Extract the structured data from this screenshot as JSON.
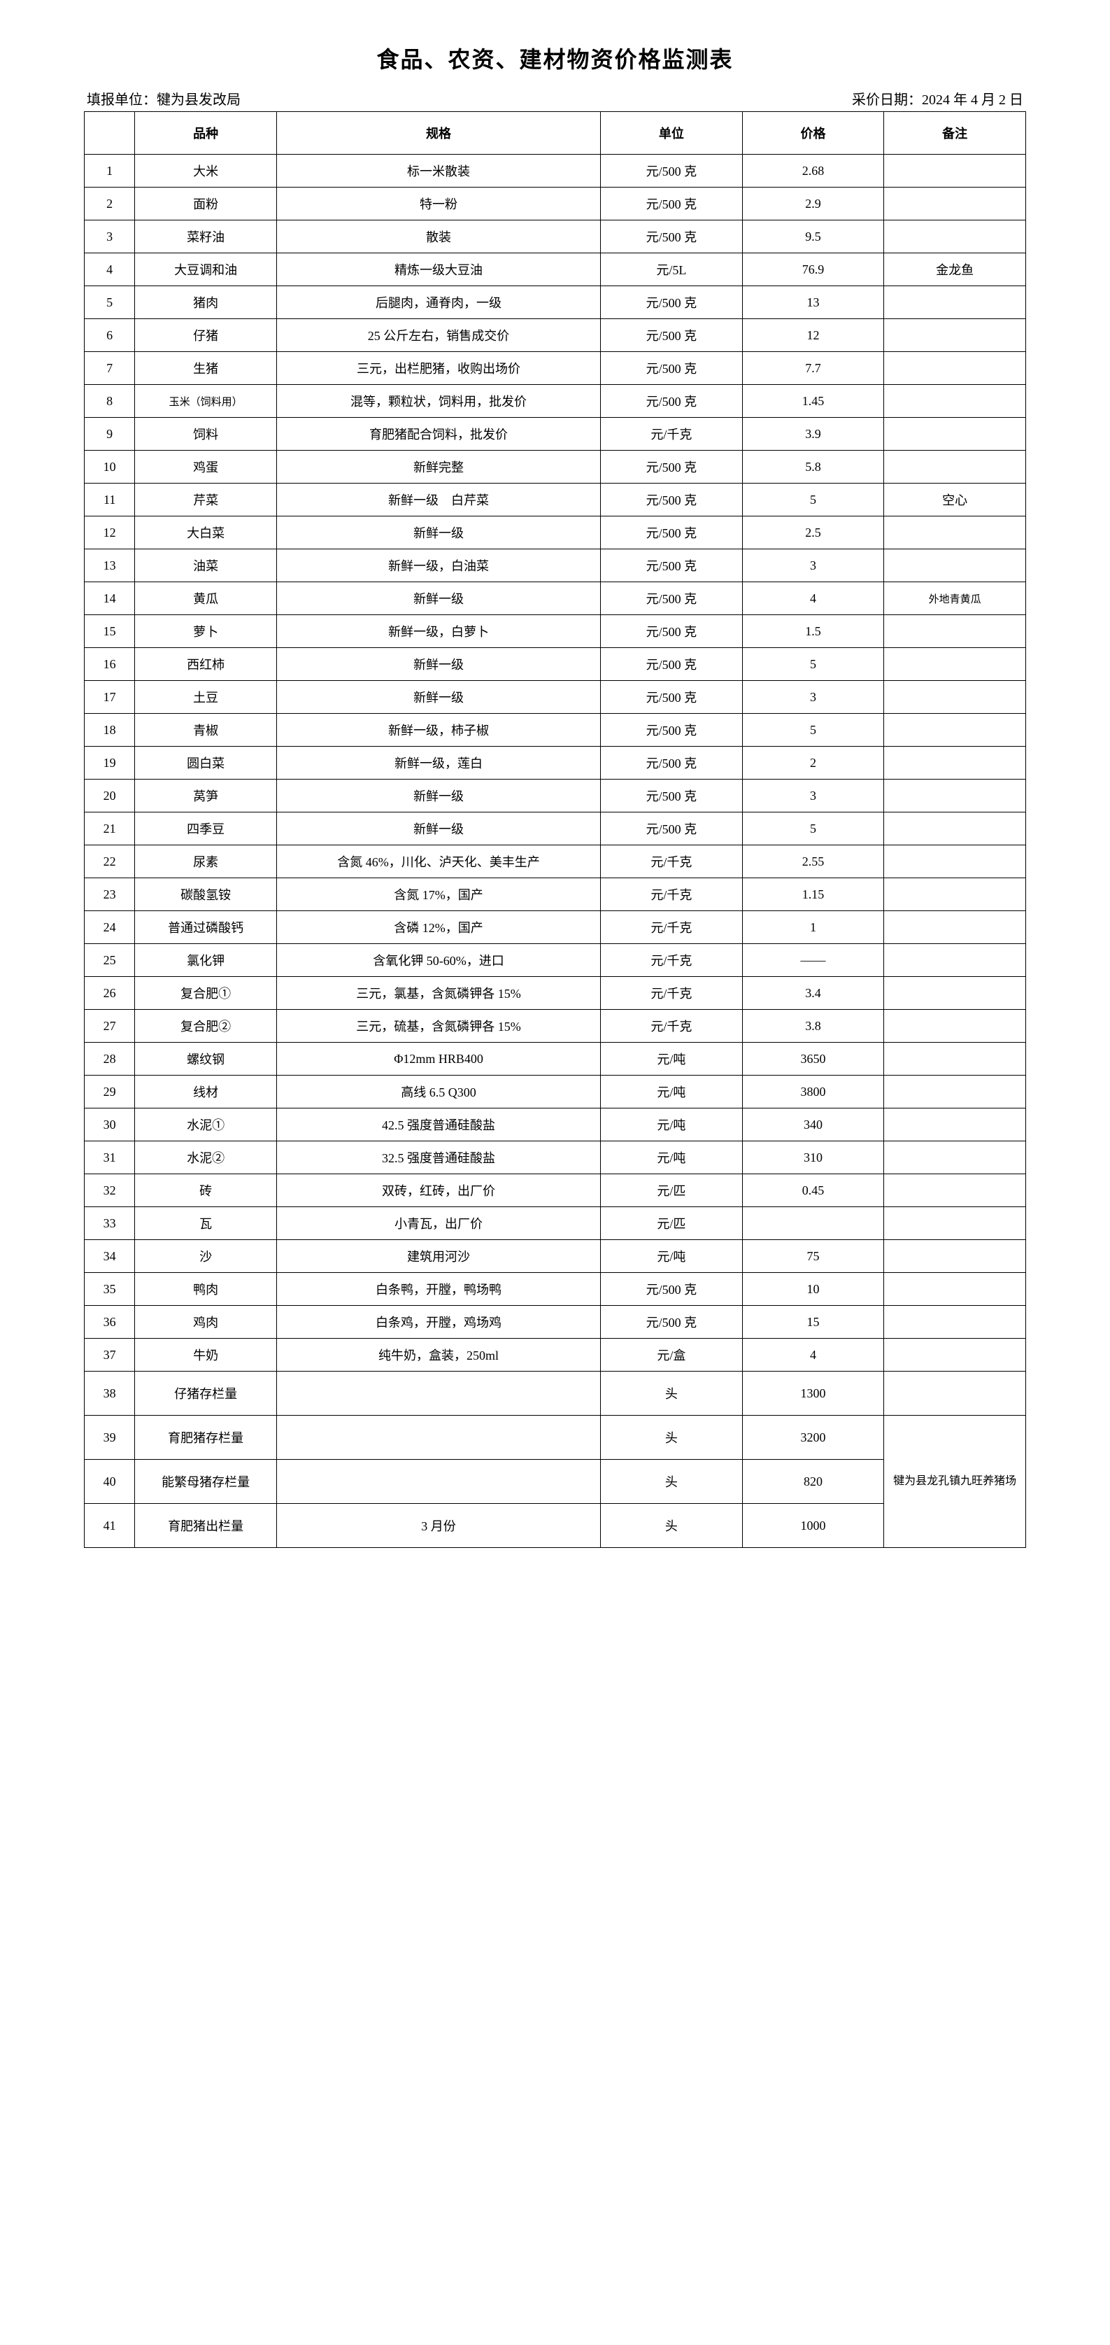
{
  "title": "食品、农资、建材物资价格监测表",
  "meta": {
    "reporter_label": "填报单位：犍为县发改局",
    "date_label": "采价日期：2024 年 4 月 2 日"
  },
  "headers": {
    "idx": "",
    "name": "品种",
    "spec": "规格",
    "unit": "单位",
    "price": "价格",
    "note": "备注"
  },
  "rows": [
    {
      "idx": "1",
      "name": "大米",
      "spec": "标一米散装",
      "unit": "元/500 克",
      "price": "2.68",
      "note": ""
    },
    {
      "idx": "2",
      "name": "面粉",
      "spec": "特一粉",
      "unit": "元/500 克",
      "price": "2.9",
      "note": ""
    },
    {
      "idx": "3",
      "name": "菜籽油",
      "spec": "散装",
      "unit": "元/500 克",
      "price": "9.5",
      "note": ""
    },
    {
      "idx": "4",
      "name": "大豆调和油",
      "spec": "精炼一级大豆油",
      "unit": "元/5L",
      "price": "76.9",
      "note": "金龙鱼"
    },
    {
      "idx": "5",
      "name": "猪肉",
      "spec": "后腿肉，通脊肉，一级",
      "unit": "元/500 克",
      "price": "13",
      "note": ""
    },
    {
      "idx": "6",
      "name": "仔猪",
      "spec": "25 公斤左右，销售成交价",
      "unit": "元/500 克",
      "price": "12",
      "note": ""
    },
    {
      "idx": "7",
      "name": "生猪",
      "spec": "三元，出栏肥猪，收购出场价",
      "unit": "元/500 克",
      "price": "7.7",
      "note": ""
    },
    {
      "idx": "8",
      "name": "玉米（饲料用）",
      "spec": "混等，颗粒状，饲料用，批发价",
      "unit": "元/500 克",
      "price": "1.45",
      "note": "",
      "nameSmall": true
    },
    {
      "idx": "9",
      "name": "饲料",
      "spec": "育肥猪配合饲料，批发价",
      "unit": "元/千克",
      "price": "3.9",
      "note": ""
    },
    {
      "idx": "10",
      "name": "鸡蛋",
      "spec": "新鲜完整",
      "unit": "元/500 克",
      "price": "5.8",
      "note": ""
    },
    {
      "idx": "11",
      "name": "芹菜",
      "spec": "新鲜一级　白芹菜",
      "unit": "元/500 克",
      "price": "5",
      "note": "空心"
    },
    {
      "idx": "12",
      "name": "大白菜",
      "spec": "新鲜一级",
      "unit": "元/500 克",
      "price": "2.5",
      "note": ""
    },
    {
      "idx": "13",
      "name": "油菜",
      "spec": "新鲜一级，白油菜",
      "unit": "元/500 克",
      "price": "3",
      "note": ""
    },
    {
      "idx": "14",
      "name": "黄瓜",
      "spec": "新鲜一级",
      "unit": "元/500 克",
      "price": "4",
      "note": "外地青黄瓜",
      "noteSmall": true
    },
    {
      "idx": "15",
      "name": "萝卜",
      "spec": "新鲜一级，白萝卜",
      "unit": "元/500 克",
      "price": "1.5",
      "note": ""
    },
    {
      "idx": "16",
      "name": "西红柿",
      "spec": "新鲜一级",
      "unit": "元/500 克",
      "price": "5",
      "note": ""
    },
    {
      "idx": "17",
      "name": "土豆",
      "spec": "新鲜一级",
      "unit": "元/500 克",
      "price": "3",
      "note": ""
    },
    {
      "idx": "18",
      "name": "青椒",
      "spec": "新鲜一级，柿子椒",
      "unit": "元/500 克",
      "price": "5",
      "note": ""
    },
    {
      "idx": "19",
      "name": "圆白菜",
      "spec": "新鲜一级，莲白",
      "unit": "元/500 克",
      "price": "2",
      "note": ""
    },
    {
      "idx": "20",
      "name": "莴笋",
      "spec": "新鲜一级",
      "unit": "元/500 克",
      "price": "3",
      "note": ""
    },
    {
      "idx": "21",
      "name": "四季豆",
      "spec": "新鲜一级",
      "unit": "元/500 克",
      "price": "5",
      "note": ""
    },
    {
      "idx": "22",
      "name": "尿素",
      "spec": "含氮 46%，川化、泸天化、美丰生产",
      "unit": "元/千克",
      "price": "2.55",
      "note": ""
    },
    {
      "idx": "23",
      "name": "碳酸氢铵",
      "spec": "含氮 17%，国产",
      "unit": "元/千克",
      "price": "1.15",
      "note": ""
    },
    {
      "idx": "24",
      "name": "普通过磷酸钙",
      "spec": "含磷 12%，国产",
      "unit": "元/千克",
      "price": "1",
      "note": ""
    },
    {
      "idx": "25",
      "name": "氯化钾",
      "spec": "含氧化钾 50-60%，进口",
      "unit": "元/千克",
      "price": "——",
      "note": ""
    },
    {
      "idx": "26",
      "name": "复合肥①",
      "spec": "三元，氯基，含氮磷钾各 15%",
      "unit": "元/千克",
      "price": "3.4",
      "note": ""
    },
    {
      "idx": "27",
      "name": "复合肥②",
      "spec": "三元，硫基，含氮磷钾各 15%",
      "unit": "元/千克",
      "price": "3.8",
      "note": ""
    },
    {
      "idx": "28",
      "name": "螺纹钢",
      "spec": "Φ12mm HRB400",
      "unit": "元/吨",
      "price": "3650",
      "note": ""
    },
    {
      "idx": "29",
      "name": "线材",
      "spec": "高线 6.5 Q300",
      "unit": "元/吨",
      "price": "3800",
      "note": ""
    },
    {
      "idx": "30",
      "name": "水泥①",
      "spec": "42.5 强度普通硅酸盐",
      "unit": "元/吨",
      "price": "340",
      "note": ""
    },
    {
      "idx": "31",
      "name": "水泥②",
      "spec": "32.5 强度普通硅酸盐",
      "unit": "元/吨",
      "price": "310",
      "note": ""
    },
    {
      "idx": "32",
      "name": "砖",
      "spec": "双砖，红砖，出厂价",
      "unit": "元/匹",
      "price": "0.45",
      "note": ""
    },
    {
      "idx": "33",
      "name": "瓦",
      "spec": "小青瓦，出厂价",
      "unit": "元/匹",
      "price": "",
      "note": ""
    },
    {
      "idx": "34",
      "name": "沙",
      "spec": "建筑用河沙",
      "unit": "元/吨",
      "price": "75",
      "note": ""
    },
    {
      "idx": "35",
      "name": "鸭肉",
      "spec": "白条鸭，开膛，鸭场鸭",
      "unit": "元/500 克",
      "price": "10",
      "note": ""
    },
    {
      "idx": "36",
      "name": "鸡肉",
      "spec": "白条鸡，开膛，鸡场鸡",
      "unit": "元/500 克",
      "price": "15",
      "note": ""
    },
    {
      "idx": "37",
      "name": "牛奶",
      "spec": "纯牛奶，盒装，250ml",
      "unit": "元/盒",
      "price": "4",
      "note": ""
    }
  ],
  "tallRows": [
    {
      "idx": "38",
      "name": "仔猪存栏量",
      "spec": "",
      "unit": "头",
      "price": "1300"
    },
    {
      "idx": "39",
      "name": "育肥猪存栏量",
      "spec": "",
      "unit": "头",
      "price": "3200"
    },
    {
      "idx": "40",
      "name": "能繁母猪存栏量",
      "spec": "",
      "unit": "头",
      "price": "820"
    },
    {
      "idx": "41",
      "name": "育肥猪出栏量",
      "spec": "3 月份",
      "unit": "头",
      "price": "1000"
    }
  ],
  "mergedNote": "犍为县龙孔镇九旺养猪场"
}
